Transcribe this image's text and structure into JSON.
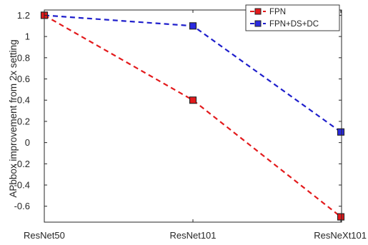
{
  "chart_data": {
    "type": "line",
    "categories": [
      "ResNet50",
      "ResNet101",
      "ResNeXt101"
    ],
    "series": [
      {
        "name": "FPN",
        "values": [
          1.2,
          0.4,
          -0.7
        ],
        "color": "#e31a1c",
        "marker_fill": "#e31a1c",
        "line_style": "dashed",
        "marker": "square"
      },
      {
        "name": "FPN+DS+DC",
        "values": [
          1.2,
          1.1,
          0.1
        ],
        "color": "#1f1fcc",
        "marker_fill": "#2a2ae0",
        "line_style": "dashed",
        "marker": "square"
      }
    ],
    "xlabel": "",
    "ylabel": "APbbox improvement from 2x setting",
    "ylim": [
      -0.75,
      1.25
    ],
    "yticks": [
      -0.6,
      -0.4,
      -0.2,
      0,
      0.2,
      0.4,
      0.6,
      0.8,
      1,
      1.2
    ],
    "ytick_labels": [
      "-0.6",
      "-0.4",
      "-0.2",
      "0",
      "0.2",
      "0.4",
      "0.6",
      "0.8",
      "1",
      "1.2"
    ],
    "grid": false,
    "legend_position": "top-right"
  }
}
